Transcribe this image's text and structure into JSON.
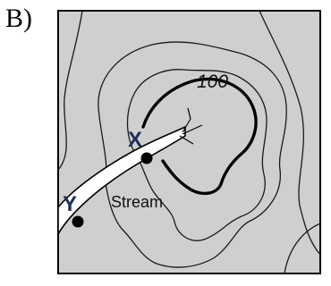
{
  "option_label": "B)",
  "map": {
    "contour_label": "100",
    "stream_label": "Stream",
    "point_x_label": "X",
    "point_y_label": "Y",
    "colors": {
      "land": "#cfcfcf",
      "stream": "#ffffff",
      "lines": "#000000",
      "point_labels": "#1f2f5a"
    }
  }
}
